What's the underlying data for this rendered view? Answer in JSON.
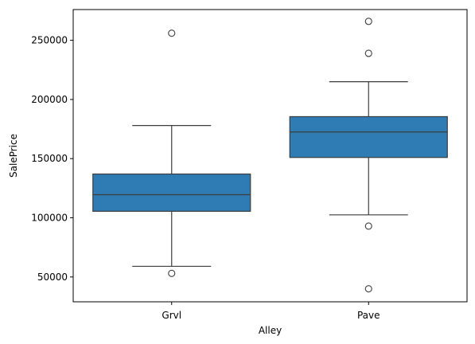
{
  "chart_data": {
    "type": "box",
    "xlabel": "Alley",
    "ylabel": "SalePrice",
    "categories": [
      "Grvl",
      "Pave"
    ],
    "ylim": [
      29000,
      276000
    ],
    "yticks": [
      50000,
      100000,
      150000,
      200000,
      250000
    ],
    "box_color": "#2f7bb3",
    "line_color": "#3d3d3d",
    "boxes": [
      {
        "category": "Grvl",
        "whisker_low": 59000,
        "q1": 105500,
        "median": 119500,
        "q3": 137000,
        "whisker_high": 178000,
        "outliers": [
          256000,
          53000
        ]
      },
      {
        "category": "Pave",
        "whisker_low": 102500,
        "q1": 151000,
        "median": 172500,
        "q3": 185500,
        "whisker_high": 215000,
        "outliers": [
          266000,
          239000,
          93000,
          40000
        ]
      }
    ]
  }
}
